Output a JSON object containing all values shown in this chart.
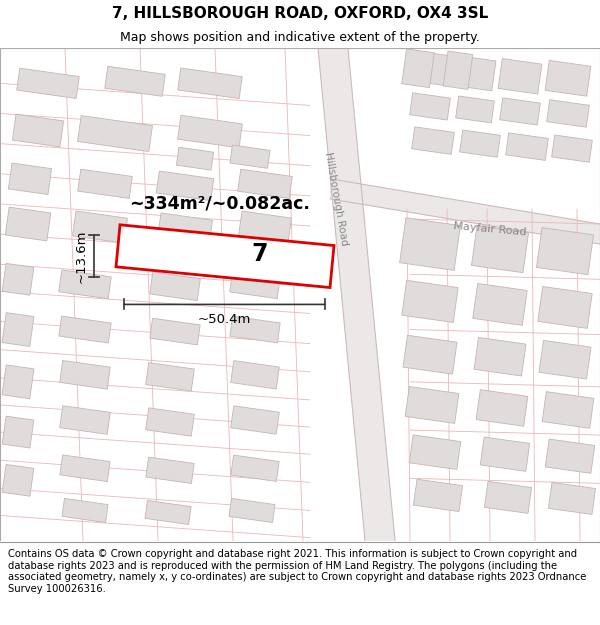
{
  "title_line1": "7, HILLSBOROUGH ROAD, OXFORD, OX4 3SL",
  "title_line2": "Map shows position and indicative extent of the property.",
  "footer_text": "Contains OS data © Crown copyright and database right 2021. This information is subject to Crown copyright and database rights 2023 and is reproduced with the permission of HM Land Registry. The polygons (including the associated geometry, namely x, y co-ordinates) are subject to Crown copyright and database rights 2023 Ordnance Survey 100026316.",
  "background_color": "#ffffff",
  "map_bg": "#f9f6f6",
  "road_fill": "#e8e0e0",
  "road_edge": "#c8b0b0",
  "building_fill": "#e0dcdc",
  "building_edge": "#c8b4b4",
  "highlight_color": "#dd0000",
  "area_text": "~334m²/~0.082ac.",
  "width_text": "~50.4m",
  "height_text": "~13.6m",
  "number_text": "7",
  "road_label_hillsborough": "Hillsborough Road",
  "road_label_mayfair": "Mayfair Road",
  "title_fontsize": 11,
  "subtitle_fontsize": 9,
  "footer_fontsize": 7.2,
  "annot_color": "#333333",
  "road_label_color": "#888888"
}
